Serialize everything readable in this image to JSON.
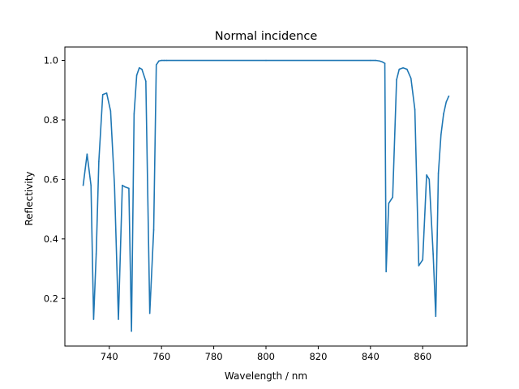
{
  "chart_data": {
    "type": "line",
    "title": "Normal incidence",
    "xlabel": "Wavelength / nm",
    "ylabel": "Reflectivity",
    "xlim": [
      723,
      877
    ],
    "ylim": [
      0.04,
      1.045
    ],
    "xticks": [
      740,
      760,
      780,
      800,
      820,
      840,
      860
    ],
    "yticks": [
      0.2,
      0.4,
      0.6,
      0.8,
      1.0
    ],
    "xtick_labels": [
      "740",
      "760",
      "780",
      "800",
      "820",
      "840",
      "860"
    ],
    "ytick_labels": [
      "0.2",
      "0.4",
      "0.6",
      "0.8",
      "1.0"
    ],
    "grid": false,
    "line_color": "#1f77b4",
    "series": [
      {
        "x": [
          730,
          731.5,
          733,
          734,
          735,
          736,
          737.5,
          739,
          740.5,
          742,
          743.5,
          745,
          746,
          747.5,
          748.5,
          749.5,
          750.5,
          751.5,
          752.5,
          754,
          755.5,
          757,
          758,
          759,
          760,
          761,
          762,
          800,
          840,
          842,
          843.5,
          844.5,
          845.5,
          846,
          847,
          848.5,
          850,
          851,
          852.5,
          854,
          855.5,
          857,
          858.5,
          860,
          861.5,
          862.5,
          864,
          865,
          866,
          867,
          868,
          869,
          870
        ],
        "y": [
          0.58,
          0.685,
          0.58,
          0.13,
          0.35,
          0.66,
          0.885,
          0.89,
          0.83,
          0.58,
          0.13,
          0.58,
          0.575,
          0.57,
          0.09,
          0.82,
          0.95,
          0.975,
          0.97,
          0.93,
          0.15,
          0.43,
          0.985,
          0.998,
          1.0,
          1.0,
          1.0,
          1.0,
          1.0,
          1.0,
          0.998,
          0.995,
          0.99,
          0.29,
          0.52,
          0.54,
          0.935,
          0.97,
          0.975,
          0.97,
          0.94,
          0.835,
          0.31,
          0.33,
          0.615,
          0.6,
          0.35,
          0.14,
          0.62,
          0.75,
          0.82,
          0.86,
          0.88
        ]
      }
    ]
  }
}
